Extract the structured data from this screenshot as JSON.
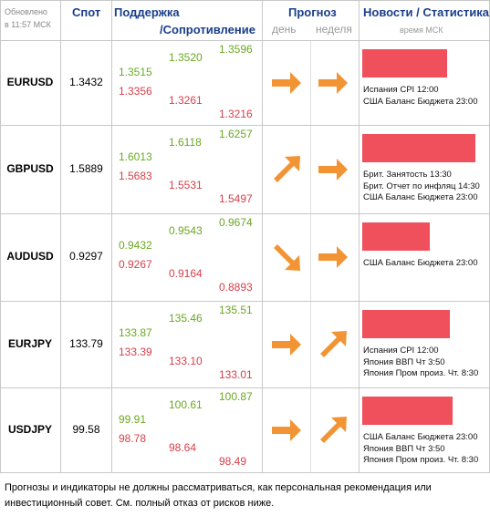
{
  "header": {
    "updated_line1": "Обновлено",
    "updated_line2": "в 11:57 МСК",
    "spot": "Спот",
    "support": "Поддержка",
    "resistance": "/Сопротивление",
    "forecast": "Прогноз",
    "forecast_day": "день",
    "forecast_week": "неделя",
    "news": "Новости / Статистика",
    "news_time": "время МСК"
  },
  "rows": [
    {
      "pair": "EURUSD",
      "spot": "1.3432",
      "s1": "1.3515",
      "s2": "1.3356",
      "m1": "1.3520",
      "m2": "1.3261",
      "r1": "1.3596",
      "r2": "1.3216",
      "day_icon": "arrow-right-icon",
      "week_icon": "arrow-right-icon",
      "news_strength": 0.74,
      "news": [
        "Испания CPI 12:00",
        "США Баланс Бюджета 23:00"
      ]
    },
    {
      "pair": "GBPUSD",
      "spot": "1.5889",
      "s1": "1.6013",
      "s2": "1.5683",
      "m1": "1.6118",
      "m2": "1.5531",
      "r1": "1.6257",
      "r2": "1.5497",
      "day_icon": "arrow-up-right-icon",
      "week_icon": "arrow-right-icon",
      "news_strength": 0.99,
      "news": [
        "Брит. Занятость 13:30",
        "Брит. Отчет по инфляц 14:30",
        "США Баланс Бюджета 23:00"
      ]
    },
    {
      "pair": "AUDUSD",
      "spot": "0.9297",
      "s1": "0.9432",
      "s2": "0.9267",
      "m1": "0.9543",
      "m2": "0.9164",
      "r1": "0.9674",
      "r2": "0.8893",
      "day_icon": "arrow-down-right-icon",
      "week_icon": "arrow-right-icon",
      "news_strength": 0.59,
      "news": [
        "США Баланс Бюджета 23:00"
      ]
    },
    {
      "pair": "EURJPY",
      "spot": "133.79",
      "s1": "133.87",
      "s2": "133.39",
      "m1": "135.46",
      "m2": "133.10",
      "r1": "135.51",
      "r2": "133.01",
      "day_icon": "arrow-right-icon",
      "week_icon": "arrow-up-right-icon",
      "news_strength": 0.77,
      "news": [
        "Испания CPI 12:00",
        "Япония ВВП Чт 3:50",
        "Япония Пром произ. Чт. 8:30"
      ]
    },
    {
      "pair": "USDJPY",
      "spot": "99.58",
      "s1": "99.91",
      "s2": "98.78",
      "m1": "100.61",
      "m2": "98.64",
      "r1": "100.87",
      "r2": "98.49",
      "day_icon": "arrow-right-icon",
      "week_icon": "arrow-up-right-icon",
      "news_strength": 0.79,
      "news": [
        "США Баланс Бюджета 23:00",
        "Япония ВВП Чт 3:50",
        "Япония Пром произ. Чт. 8:30"
      ]
    }
  ],
  "disclaimer": "Прогнозы и индикаторы не должны рассматриваться, как персональная рекомендация или инвестиционный совет. См. полный отказ от рисков ниже.",
  "colors": {
    "header_text": "#1a3f8a",
    "support_green": "#6aa821",
    "resistance_red": "#d6404b",
    "arrow_orange": "#f39434",
    "news_bar": "#f0505c"
  }
}
